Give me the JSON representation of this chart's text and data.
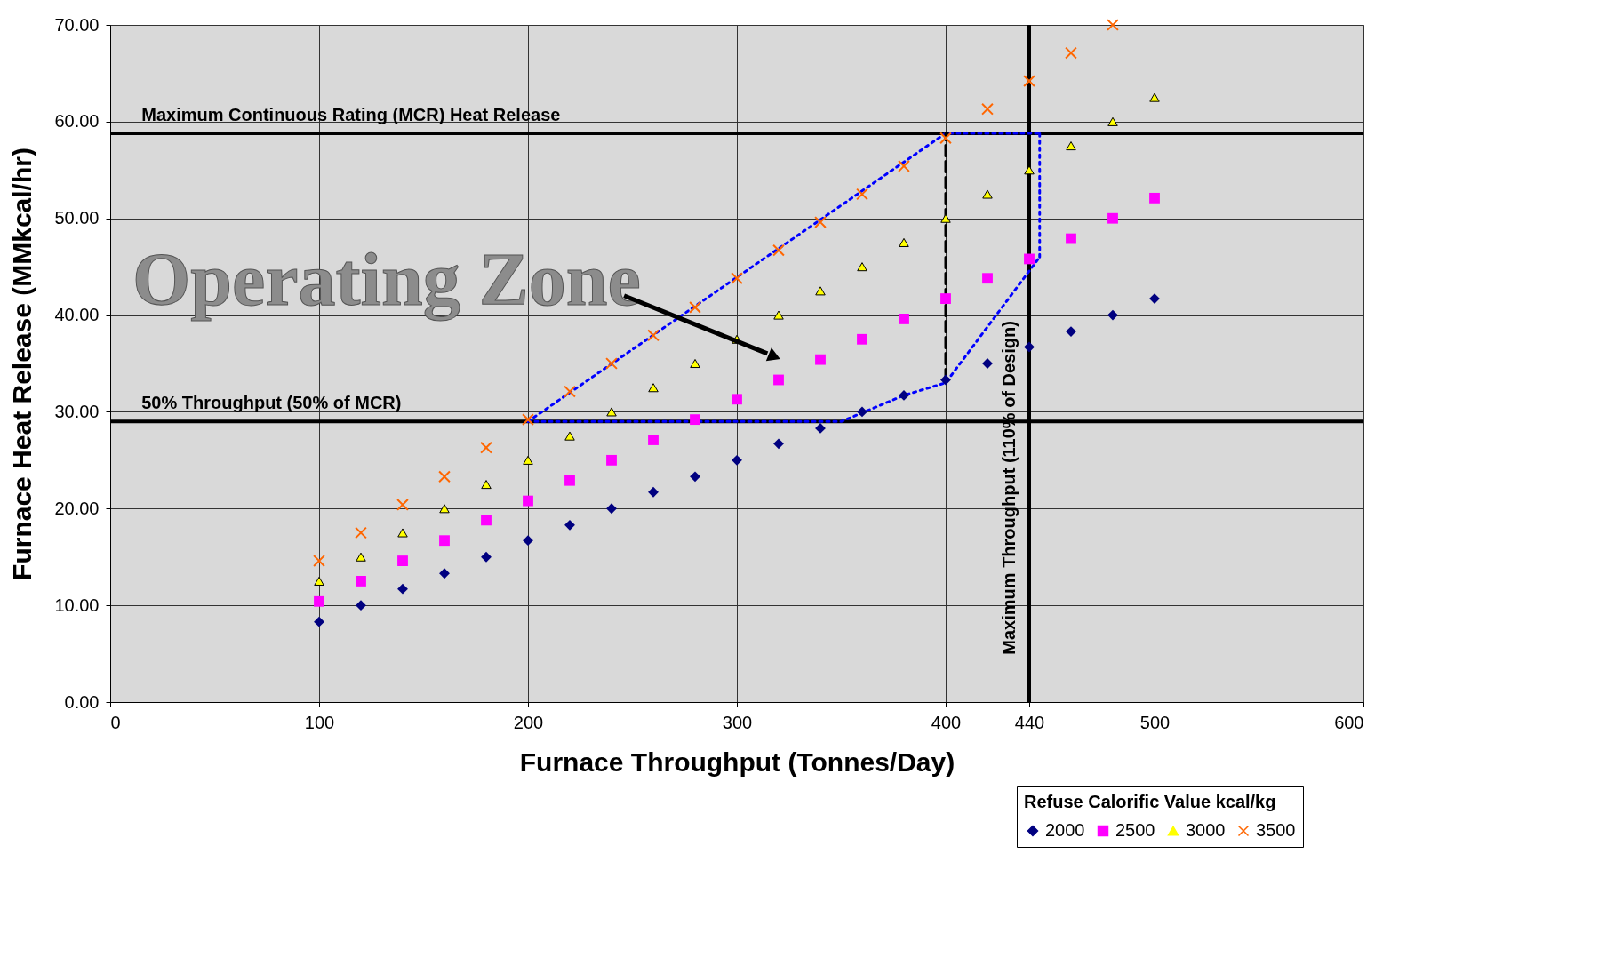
{
  "chart_data": {
    "type": "scatter",
    "xlabel": "Furnace Throughput (Tonnes/Day)",
    "ylabel": "Furnace Heat Release (MMkcal/hr)",
    "legend_title": "Refuse Calorific Value kcal/kg",
    "annotations": [
      "Operating Zone"
    ],
    "x": [
      100,
      120,
      140,
      160,
      180,
      200,
      220,
      240,
      260,
      280,
      300,
      320,
      340,
      360,
      380,
      400,
      420,
      440,
      460,
      480,
      500
    ],
    "series": [
      {
        "type": "line",
        "color": "#0000ff",
        "line_style": "dotted",
        "x": [
          200,
          400,
          445
        ],
        "values": [
          29,
          58.8,
          58.8
        ]
      },
      {
        "type": "line",
        "color": "#0000ff",
        "line_style": "dotted",
        "x": [
          200,
          350,
          380,
          400,
          445
        ],
        "values": [
          29,
          29,
          31.7,
          33,
          46
        ]
      },
      {
        "type": "line",
        "color": "#0000ff",
        "line_style": "dotted",
        "x": [
          445,
          445
        ],
        "values": [
          46,
          58.8
        ]
      },
      {
        "type": "line",
        "color": "#000000",
        "line_style": "dashed",
        "x": [
          400,
          400
        ],
        "values": [
          33.3,
          58.8
        ]
      },
      {
        "name": "2000",
        "color": "#000080",
        "marker": "diamond",
        "values": [
          8.3,
          10,
          11.7,
          13.3,
          15,
          16.7,
          18.3,
          20,
          21.7,
          23.3,
          25,
          26.7,
          28.3,
          30,
          31.7,
          33.3,
          35,
          36.7,
          38.3,
          40,
          41.7
        ]
      },
      {
        "name": "2500",
        "color": "#ff00ff",
        "marker": "square",
        "values": [
          10.4,
          12.5,
          14.6,
          16.7,
          18.8,
          20.8,
          22.9,
          25,
          27.1,
          29.2,
          31.3,
          33.3,
          35.4,
          37.5,
          39.6,
          41.7,
          43.8,
          45.8,
          47.9,
          50,
          52.1
        ]
      },
      {
        "name": "3000",
        "color": "#ffff00",
        "marker": "triangle",
        "values": [
          12.5,
          15,
          17.5,
          20,
          22.5,
          25,
          27.5,
          30,
          32.5,
          35,
          37.5,
          40,
          42.5,
          45,
          47.5,
          50,
          52.5,
          55,
          57.5,
          60,
          62.5
        ]
      },
      {
        "name": "3500",
        "color": "#ff6600",
        "marker": "cross",
        "values": [
          14.6,
          17.5,
          20.4,
          23.3,
          26.3,
          29.2,
          32.1,
          35,
          37.9,
          40.8,
          43.8,
          46.7,
          49.6,
          52.5,
          55.4,
          58.3,
          61.3,
          64.2,
          67.1,
          70,
          null
        ]
      }
    ],
    "xlim": [
      0,
      600
    ],
    "ylim": [
      0,
      70
    ],
    "xticks": [
      0,
      100,
      200,
      300,
      400,
      440,
      500,
      600
    ],
    "yticks": [
      {
        "value": 0,
        "label": "0.00"
      },
      {
        "value": 10,
        "label": "10.00"
      },
      {
        "value": 20,
        "label": "20.00"
      },
      {
        "value": 30,
        "label": "30.00"
      },
      {
        "value": 40,
        "label": "40.00"
      },
      {
        "value": 50,
        "label": "50.00"
      },
      {
        "value": 60,
        "label": "60.00"
      },
      {
        "value": 70,
        "label": "70.00"
      }
    ],
    "grid": true,
    "legend": "bottom right",
    "ref_lines": [
      {
        "axis": "y",
        "value": 58.8,
        "label": "Maximum Continuous Rating (MCR) Heat Release"
      },
      {
        "axis": "y",
        "value": 29,
        "label": "50% Throughput (50% of MCR)"
      },
      {
        "axis": "x",
        "value": 440,
        "label": "Maximum Throughput (110% of Design)"
      }
    ]
  }
}
